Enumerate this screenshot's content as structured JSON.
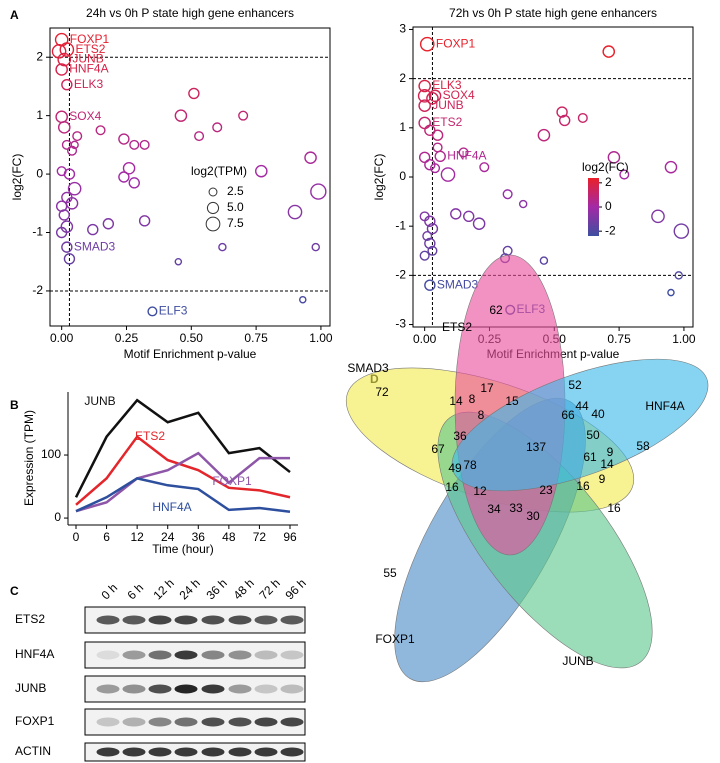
{
  "panel_labels": [
    "A",
    "B",
    "C",
    "D"
  ],
  "chart_data": [
    {
      "type": "scatter",
      "title": "24h vs 0h P state high gene enhancers",
      "x_label": "Motif Enrichment p-value",
      "y_label": "log2(FC)",
      "xlim": [
        -0.045,
        1.035
      ],
      "ylim": [
        -2.6,
        2.5
      ],
      "xticks": [
        {
          "value": 0,
          "label": "0.00"
        },
        {
          "value": 0.25,
          "label": "0.25"
        },
        {
          "value": 0.5,
          "label": "0.50"
        },
        {
          "value": 0.75,
          "label": "0.75"
        },
        {
          "value": 1,
          "label": "1.00"
        }
      ],
      "yticks": [
        -2,
        -1,
        0,
        1,
        2
      ],
      "reference_lines": {
        "x": [
          0.03
        ],
        "y": [
          2,
          -2
        ]
      },
      "colorscale": [
        "#3d4ea0",
        "#a32aa6",
        "#e8202a"
      ],
      "color_range": [
        -2.4,
        2.4
      ],
      "size_legend": {
        "title": "log2(TPM)",
        "values": [
          2.5,
          {
            "value": 5,
            "label": "5.0"
          },
          7.5
        ]
      },
      "x": [
        0.0,
        0.02,
        0.01,
        0.0,
        0.02,
        0.0,
        0.02,
        0.35,
        -0.01,
        0.01,
        0.02,
        0.04,
        0.0,
        0.03,
        0.05,
        0.02,
        0.04,
        0.0,
        0.01,
        0.02,
        0.0,
        0.03,
        0.06,
        0.05,
        0.15,
        0.24,
        0.28,
        0.32,
        0.24,
        0.26,
        0.28,
        0.12,
        0.18,
        0.32,
        0.46,
        0.51,
        0.53,
        0.6,
        0.7,
        0.77,
        0.9,
        0.96,
        0.99,
        0.98,
        0.62,
        0.45,
        0.93
      ],
      "y": [
        2.3,
        2.13,
        1.96,
        1.79,
        1.53,
        0.98,
        -1.25,
        -2.35,
        2.1,
        0.8,
        0.5,
        0.4,
        0.05,
        0.0,
        -0.25,
        -0.4,
        -0.5,
        -0.55,
        -0.7,
        -0.9,
        -1.0,
        -1.45,
        0.65,
        0.5,
        0.75,
        0.6,
        0.5,
        0.5,
        -0.05,
        0.1,
        -0.15,
        -0.95,
        -0.85,
        -0.8,
        1.0,
        1.38,
        0.65,
        0.8,
        1.0,
        0.05,
        -0.65,
        0.28,
        -0.3,
        -1.25,
        -1.25,
        -1.5,
        -2.15
      ],
      "size": [
        6,
        7,
        6,
        5,
        4,
        5,
        4,
        3,
        7,
        5,
        3,
        3,
        3,
        4,
        6,
        4,
        5,
        4,
        4,
        5,
        4,
        4,
        3,
        2,
        3,
        4,
        3,
        3,
        4,
        5,
        4,
        4,
        4,
        4,
        5,
        4,
        3,
        3,
        3,
        5,
        7,
        5,
        9,
        2,
        2,
        1.5,
        1.5
      ],
      "point_labels": [
        "FOXP1",
        "ETS2",
        "JUNB",
        "HNF4A",
        "ELK3",
        "SOX4",
        "SMAD3",
        "ELF3",
        null,
        null,
        null,
        null,
        null,
        null,
        null,
        null,
        null,
        null,
        null,
        null,
        null,
        null,
        null,
        null,
        null,
        null,
        null,
        null,
        null,
        null,
        null,
        null,
        null,
        null,
        null,
        null,
        null,
        null,
        null,
        null,
        null,
        null,
        null,
        null,
        null,
        null,
        null
      ]
    },
    {
      "type": "scatter",
      "title": "72h vs 0h P state high gene enhancers",
      "x_label": "Motif Enrichment p-value",
      "y_label": "log2(FC)",
      "xlim": [
        -0.045,
        1.035
      ],
      "ylim": [
        -3.05,
        3.05
      ],
      "xticks": [
        {
          "value": 0,
          "label": "0.00"
        },
        {
          "value": 0.25,
          "label": "0.25"
        },
        {
          "value": 0.5,
          "label": "0.50"
        },
        {
          "value": 0.75,
          "label": "0.75"
        },
        {
          "value": 1,
          "label": "1.00"
        }
      ],
      "yticks": [
        -3,
        -2,
        -1,
        0,
        1,
        2,
        3
      ],
      "reference_lines": {
        "x": [
          0.03
        ],
        "y": [
          2,
          -2
        ]
      },
      "colorscale": [
        "#3d4ea0",
        "#a32aa6",
        "#e8202a"
      ],
      "color_range": [
        -2.4,
        2.4
      ],
      "colorbar": {
        "title": "log2(FC)",
        "ticks": [
          2,
          0,
          -2
        ]
      },
      "x": [
        0.01,
        0.0,
        0.04,
        0.0,
        0.0,
        0.06,
        0.02,
        0.33,
        0.71,
        0.0,
        0.03,
        0.02,
        0.05,
        0.05,
        0.0,
        0.02,
        0.04,
        0.09,
        0.15,
        0.23,
        0.46,
        0.53,
        0.54,
        0.61,
        0.73,
        0.77,
        0.95,
        0.32,
        0.38,
        0.12,
        0.17,
        0.21,
        0.0,
        0.02,
        0.03,
        0.01,
        0.02,
        0.03,
        0.32,
        0.31,
        0.46,
        0.0,
        0.9,
        0.99,
        0.98,
        0.95
      ],
      "y": [
        2.7,
        1.85,
        1.65,
        1.45,
        1.1,
        0.42,
        -2.2,
        -2.7,
        2.55,
        1.65,
        1.6,
        0.95,
        0.85,
        0.6,
        0.4,
        0.25,
        0.18,
        0.05,
        0.5,
        0.2,
        0.85,
        1.32,
        1.15,
        1.2,
        0.4,
        0.05,
        0.2,
        -0.35,
        -0.55,
        -0.75,
        -0.8,
        -0.95,
        -0.8,
        -0.9,
        -1.05,
        -1.2,
        -1.35,
        -1.5,
        -1.5,
        -1.65,
        -1.7,
        -1.6,
        -0.8,
        -1.1,
        -2.0,
        -2.35
      ],
      "size": [
        7,
        5,
        5,
        5,
        5,
        4,
        4,
        3,
        5,
        6,
        5,
        4,
        4,
        3,
        4,
        4,
        3,
        7,
        3,
        3,
        5,
        4,
        4,
        3,
        5,
        3,
        5,
        3,
        2,
        4,
        4,
        5,
        3,
        4,
        4,
        3,
        4,
        3,
        3,
        3,
        2,
        3,
        6,
        8,
        2,
        1.5
      ],
      "point_labels": [
        "FOXP1",
        "ELK3",
        "SOX4",
        "JUNB",
        "ETS2",
        "HNF4A",
        "SMAD3",
        "ELF3",
        null,
        null,
        null,
        null,
        null,
        null,
        null,
        null,
        null,
        null,
        null,
        null,
        null,
        null,
        null,
        null,
        null,
        null,
        null,
        null,
        null,
        null,
        null,
        null,
        null,
        null,
        null,
        null,
        null,
        null,
        null,
        null,
        null,
        null,
        null,
        null,
        null,
        null
      ]
    },
    {
      "type": "line",
      "x_label": "Time (hour)",
      "y_label": "Expression (TPM)",
      "categories": [
        "0",
        "6",
        "12",
        "24",
        "36",
        "48",
        "72",
        "96"
      ],
      "ylim": [
        -11,
        200
      ],
      "yticks": [
        0,
        100
      ],
      "series": [
        {
          "name": "JUNB",
          "color": "#111111",
          "values": [
            33,
            129,
            187,
            152,
            167,
            103,
            111,
            73
          ]
        },
        {
          "name": "ETS2",
          "color": "#e3262b",
          "values": [
            21,
            63,
            129,
            92,
            76,
            48,
            44,
            33
          ]
        },
        {
          "name": "FOXP1",
          "color": "#8e56a8",
          "values": [
            11,
            25,
            63,
            76,
            103,
            56,
            95,
            95
          ]
        },
        {
          "name": "HNF4A",
          "color": "#2d4f9e",
          "values": [
            11,
            33,
            63,
            52,
            46,
            13,
            16,
            10
          ]
        }
      ]
    }
  ],
  "blot": {
    "lanes": [
      "0 h",
      "6 h",
      "12 h",
      "24 h",
      "36 h",
      "48 h",
      "72 h",
      "96 h"
    ],
    "rows": [
      {
        "name": "ETS2",
        "intensity": [
          0.7,
          0.7,
          0.8,
          0.8,
          0.75,
          0.75,
          0.7,
          0.7
        ]
      },
      {
        "name": "HNF4A",
        "intensity": [
          0.1,
          0.4,
          0.6,
          0.85,
          0.5,
          0.45,
          0.25,
          0.2
        ]
      },
      {
        "name": "JUNB",
        "intensity": [
          0.4,
          0.45,
          0.75,
          0.95,
          0.85,
          0.4,
          0.2,
          0.25
        ]
      },
      {
        "name": "FOXP1",
        "intensity": [
          0.2,
          0.3,
          0.5,
          0.6,
          0.75,
          0.75,
          0.8,
          0.8
        ]
      },
      {
        "name": "ACTIN",
        "intensity": [
          0.85,
          0.85,
          0.85,
          0.85,
          0.85,
          0.85,
          0.85,
          0.85
        ]
      }
    ]
  },
  "venn": {
    "sets": [
      {
        "name": "SMAD3",
        "color": "#f2ea4f"
      },
      {
        "name": "FOXP1",
        "color": "#4a8cc6"
      },
      {
        "name": "JUNB",
        "color": "#5ec88d"
      },
      {
        "name": "ETS2",
        "color": "#ea4f9e"
      },
      {
        "name": "HNF4A",
        "color": "#3cb9ea"
      }
    ],
    "counts": [
      62,
      17,
      52,
      14,
      8,
      15,
      44,
      40,
      8,
      66,
      58,
      72,
      36,
      137,
      50,
      67,
      9,
      61,
      14,
      49,
      78,
      9,
      16,
      12,
      23,
      16,
      34,
      33,
      30,
      16,
      55
    ]
  }
}
